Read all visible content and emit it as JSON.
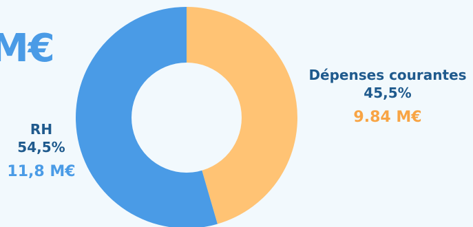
{
  "chart_data": {
    "type": "pie",
    "style": "donut",
    "title": "",
    "cropped_total_text": "M€",
    "slices": [
      {
        "name": "Dépenses courantes",
        "percent": 45.5,
        "percent_label": "45,5%",
        "amount_label": "9.84 M€",
        "color": "#ffc374",
        "amount_color": "#f8a444"
      },
      {
        "name": "RH",
        "percent": 54.5,
        "percent_label": "54,5%",
        "amount_label": "11,8 M€",
        "color": "#4a9be6",
        "amount_color": "#4a9be6"
      }
    ],
    "start_angle": "12 o'clock",
    "direction": "clockwise",
    "legend": "none"
  },
  "colors": {
    "background": "#f2f9fd",
    "label_text": "#1f5a8d"
  }
}
